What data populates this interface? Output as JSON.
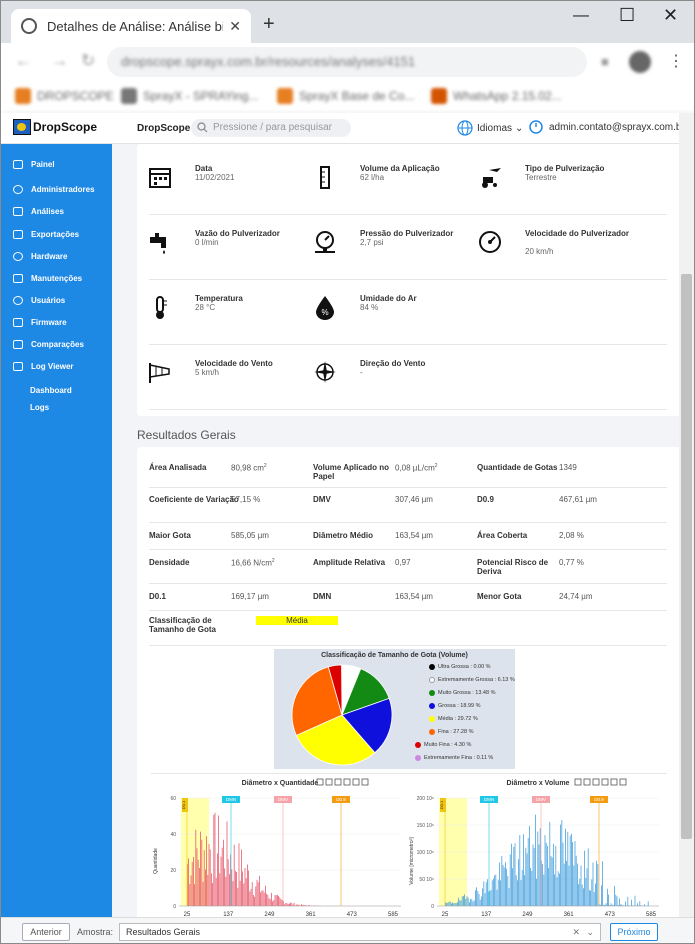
{
  "browser": {
    "tab_title": "Detalhes de Análise: Análise bico",
    "url": "dropscope.sprayx.com.br/resources/analyses/4151",
    "bookmarks": [
      "DROPSCOPE",
      "SprayX - SPRAYing...",
      "SprayX Base de Co...",
      "WhatsApp 2.15.02..."
    ]
  },
  "header": {
    "brand": "DropScope",
    "app_name": "DropScope",
    "search_placeholder": "Pressione / para pesquisar",
    "language": "Idiomas",
    "user_email": "admin.contato@sprayx.com.br"
  },
  "sidebar": {
    "items": [
      "Painel",
      "Administradores",
      "Análises",
      "Exportações",
      "Hardware",
      "Manutenções",
      "Usuários",
      "Firmware",
      "Comparações",
      "Log Viewer"
    ],
    "sub_items": [
      "Dashboard",
      "Logs"
    ]
  },
  "params": [
    {
      "icon": "calendar-icon",
      "label": "Data",
      "value": "11/02/2021"
    },
    {
      "icon": "beaker-icon",
      "label": "Volume da Aplicação",
      "value": "62 l/ha"
    },
    {
      "icon": "tractor-plane-icon",
      "label": "Tipo de Pulverização",
      "value": "Terrestre"
    },
    {
      "icon": "faucet-icon",
      "label": "Vazão do Pulverizador",
      "value": "0 l/min"
    },
    {
      "icon": "pressure-gauge-icon",
      "label": "Pressão do Pulverizador",
      "value": "2,7 psi"
    },
    {
      "icon": "speedometer-icon",
      "label": "Velocidade do Pulverizador",
      "value": "20 km/h"
    },
    {
      "icon": "thermometer-icon",
      "label": "Temperatura",
      "value": "28 °C"
    },
    {
      "icon": "humidity-drop-icon",
      "label": "Umidade do Ar",
      "value": "84 %"
    },
    {
      "icon": "windsock-icon",
      "label": "Velocidade do Vento",
      "value": "5 km/h"
    },
    {
      "icon": "compass-icon",
      "label": "Direção do Vento",
      "value": "-"
    }
  ],
  "results_title": "Resultados Gerais",
  "results": [
    {
      "label": "Área Analisada",
      "value": "80,98 cm",
      "sup": "2"
    },
    {
      "label": "Volume Aplicado no Papel",
      "value": "0,08 µL/cm",
      "sup": "2"
    },
    {
      "label": "Quantidade de Gotas",
      "value": "1349",
      "sup": ""
    },
    {
      "label": "Coeficiente de Variação",
      "value": "57,15 %",
      "sup": ""
    },
    {
      "label": "DMV",
      "value": "307,46 µm",
      "sup": ""
    },
    {
      "label": "D0.9",
      "value": "467,61 µm",
      "sup": ""
    },
    {
      "label": "Maior Gota",
      "value": "585,05 µm",
      "sup": ""
    },
    {
      "label": "Diâmetro Médio",
      "value": "163,54 µm",
      "sup": ""
    },
    {
      "label": "Área Coberta",
      "value": "2,08 %",
      "sup": ""
    },
    {
      "label": "Densidade",
      "value": "16,66 N/cm",
      "sup": "2"
    },
    {
      "label": "Amplitude Relativa",
      "value": "0,97",
      "sup": ""
    },
    {
      "label": "Potencial Risco de Deriva",
      "value": "0,77 %",
      "sup": ""
    },
    {
      "label": "D0.1",
      "value": "169,17 µm",
      "sup": ""
    },
    {
      "label": "DMN",
      "value": "163,54 µm",
      "sup": ""
    },
    {
      "label": "Menor Gota",
      "value": "24,74 µm",
      "sup": ""
    }
  ],
  "classification": {
    "label": "Classificação de Tamanho de Gota",
    "value": "Média",
    "color": "#ffff00"
  },
  "chart_data": [
    {
      "type": "pie",
      "title": "Classificação de Tamanho de Gota (Volume)",
      "series": [
        {
          "name": "Ultra Grossa : 0.00 %",
          "value": 0.0,
          "color": "#000000"
        },
        {
          "name": "Extremamente Grossa : 6.13 %",
          "value": 6.13,
          "color": "#ffffff"
        },
        {
          "name": "Muito Grossa : 13.48 %",
          "value": 13.48,
          "color": "#138a13"
        },
        {
          "name": "Grossa : 18.99 %",
          "value": 18.99,
          "color": "#1010dd"
        },
        {
          "name": "Média : 29.72 %",
          "value": 29.72,
          "color": "#ffff00"
        },
        {
          "name": "Fina : 27.28 %",
          "value": 27.28,
          "color": "#ff6600"
        },
        {
          "name": "Muito Fina : 4.30 %",
          "value": 4.3,
          "color": "#dd0000"
        },
        {
          "name": "Extremamente Fina : 0.11 %",
          "value": 0.11,
          "color": "#cc88dd"
        }
      ]
    },
    {
      "type": "bar",
      "title": "Diâmetro x Quantidade",
      "ylabel": "Quantidade",
      "xticks": [
        "25",
        "137",
        "249",
        "361",
        "473",
        "585"
      ],
      "yticks": [
        "0",
        "20",
        "40",
        "60"
      ],
      "ylim": [
        0,
        60
      ],
      "markers": [
        "D0.1",
        "DMN",
        "DMV",
        "D0.9"
      ],
      "color": "#e85d6f"
    },
    {
      "type": "bar",
      "title": "Diâmetro x Volume",
      "ylabel": "Volume [micrometro³]",
      "xticks": [
        "25",
        "137",
        "249",
        "361",
        "473",
        "585"
      ],
      "yticks": [
        "0",
        "50 10⁶",
        "100 10⁶",
        "150 10⁶",
        "200 10⁶"
      ],
      "ylim": [
        0,
        200
      ],
      "markers": [
        "D0.1",
        "DMN",
        "DMV",
        "D0.9"
      ],
      "color": "#4aa3df"
    }
  ],
  "footer": {
    "prev": "Anterior",
    "sample_label": "Amostra:",
    "sample_value": "Resultados Gerais",
    "next": "Próximo"
  }
}
